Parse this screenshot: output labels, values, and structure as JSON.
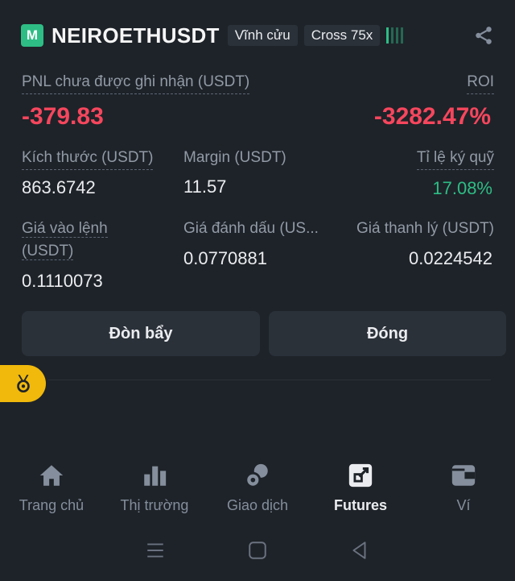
{
  "header": {
    "badge": "M",
    "symbol": "NEIROETHUSDT",
    "tag_perpetual": "Vĩnh cửu",
    "tag_margin": "Cross 75x",
    "risk_level": 0.25
  },
  "pnl": {
    "label": "PNL chưa được ghi nhận (USDT)",
    "value": "-379.83",
    "roi_label": "ROI",
    "roi_value": "-3282.47%"
  },
  "stats_row1": {
    "size_label": "Kích thước (USDT)",
    "size_value": "863.6742",
    "margin_label": "Margin (USDT)",
    "margin_value": "11.57",
    "ratio_label": "Tỉ lệ ký quỹ",
    "ratio_value": "17.08%"
  },
  "stats_row2": {
    "entry_label_1": "Giá vào lệnh",
    "entry_label_2": "(USDT)",
    "entry_value": "0.1110073",
    "mark_label": "Giá đánh dấu (US...",
    "mark_value": "0.0770881",
    "liq_label": "Giá thanh lý (USDT)",
    "liq_value": "0.0224542"
  },
  "actions": {
    "leverage": "Đòn bẩy",
    "close": "Đóng"
  },
  "nav": [
    {
      "label": "Trang chủ",
      "icon": "home-icon"
    },
    {
      "label": "Thị trường",
      "icon": "markets-icon"
    },
    {
      "label": "Giao dịch",
      "icon": "trade-icon"
    },
    {
      "label": "Futures",
      "icon": "futures-icon",
      "active": true
    },
    {
      "label": "Ví",
      "icon": "wallet-icon"
    }
  ],
  "colors": {
    "background": "#1e2329",
    "negative": "#f6465d",
    "positive": "#2ebd85",
    "accent": "#f0b90b"
  }
}
